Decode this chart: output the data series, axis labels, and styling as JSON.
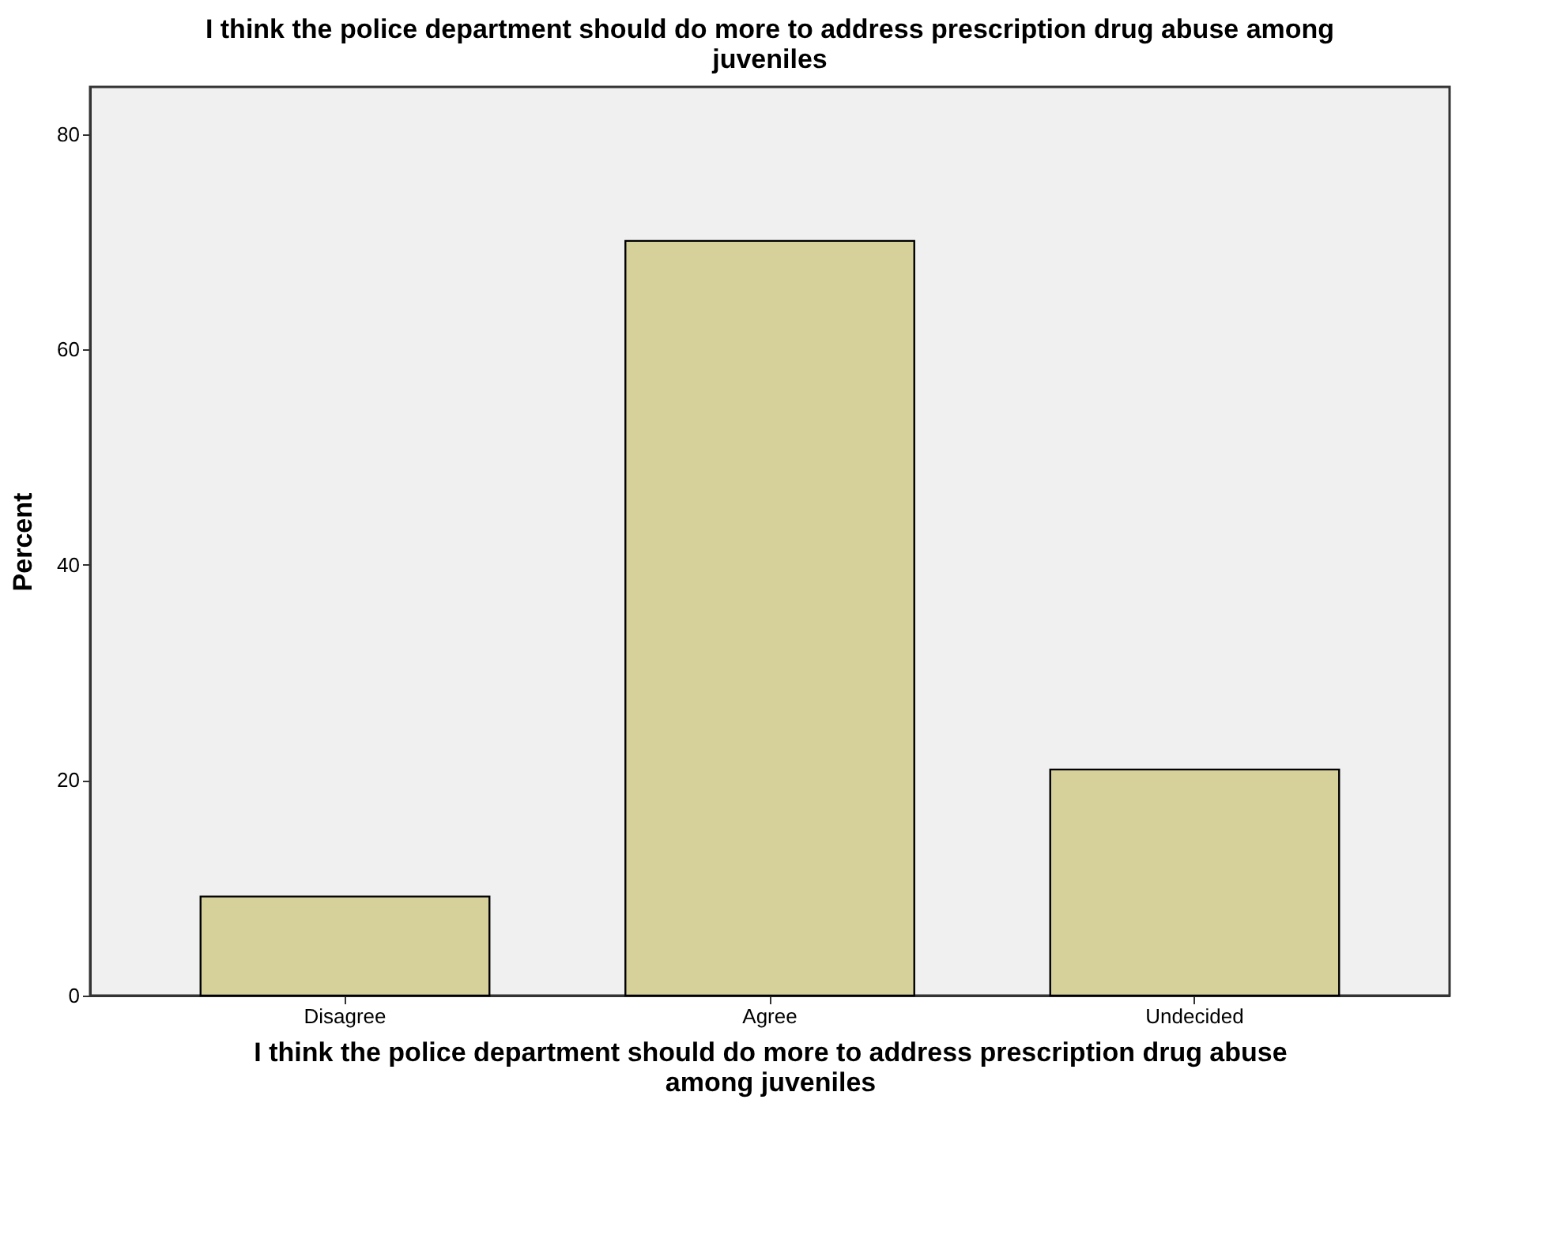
{
  "chart_data": {
    "type": "bar",
    "title": "I think the police department should do more to address prescription drug abuse among juveniles",
    "xlabel": "I think the police department should do more to address prescription drug abuse among juveniles",
    "ylabel": "Percent",
    "categories": [
      "Disagree",
      "Agree",
      "Undecided"
    ],
    "values": [
      9.2,
      70.1,
      21.0
    ],
    "color": "#d6d09a",
    "ylim": [
      0,
      84.4
    ],
    "yticks": [
      0,
      20,
      40,
      60,
      80
    ],
    "grid": false
  }
}
